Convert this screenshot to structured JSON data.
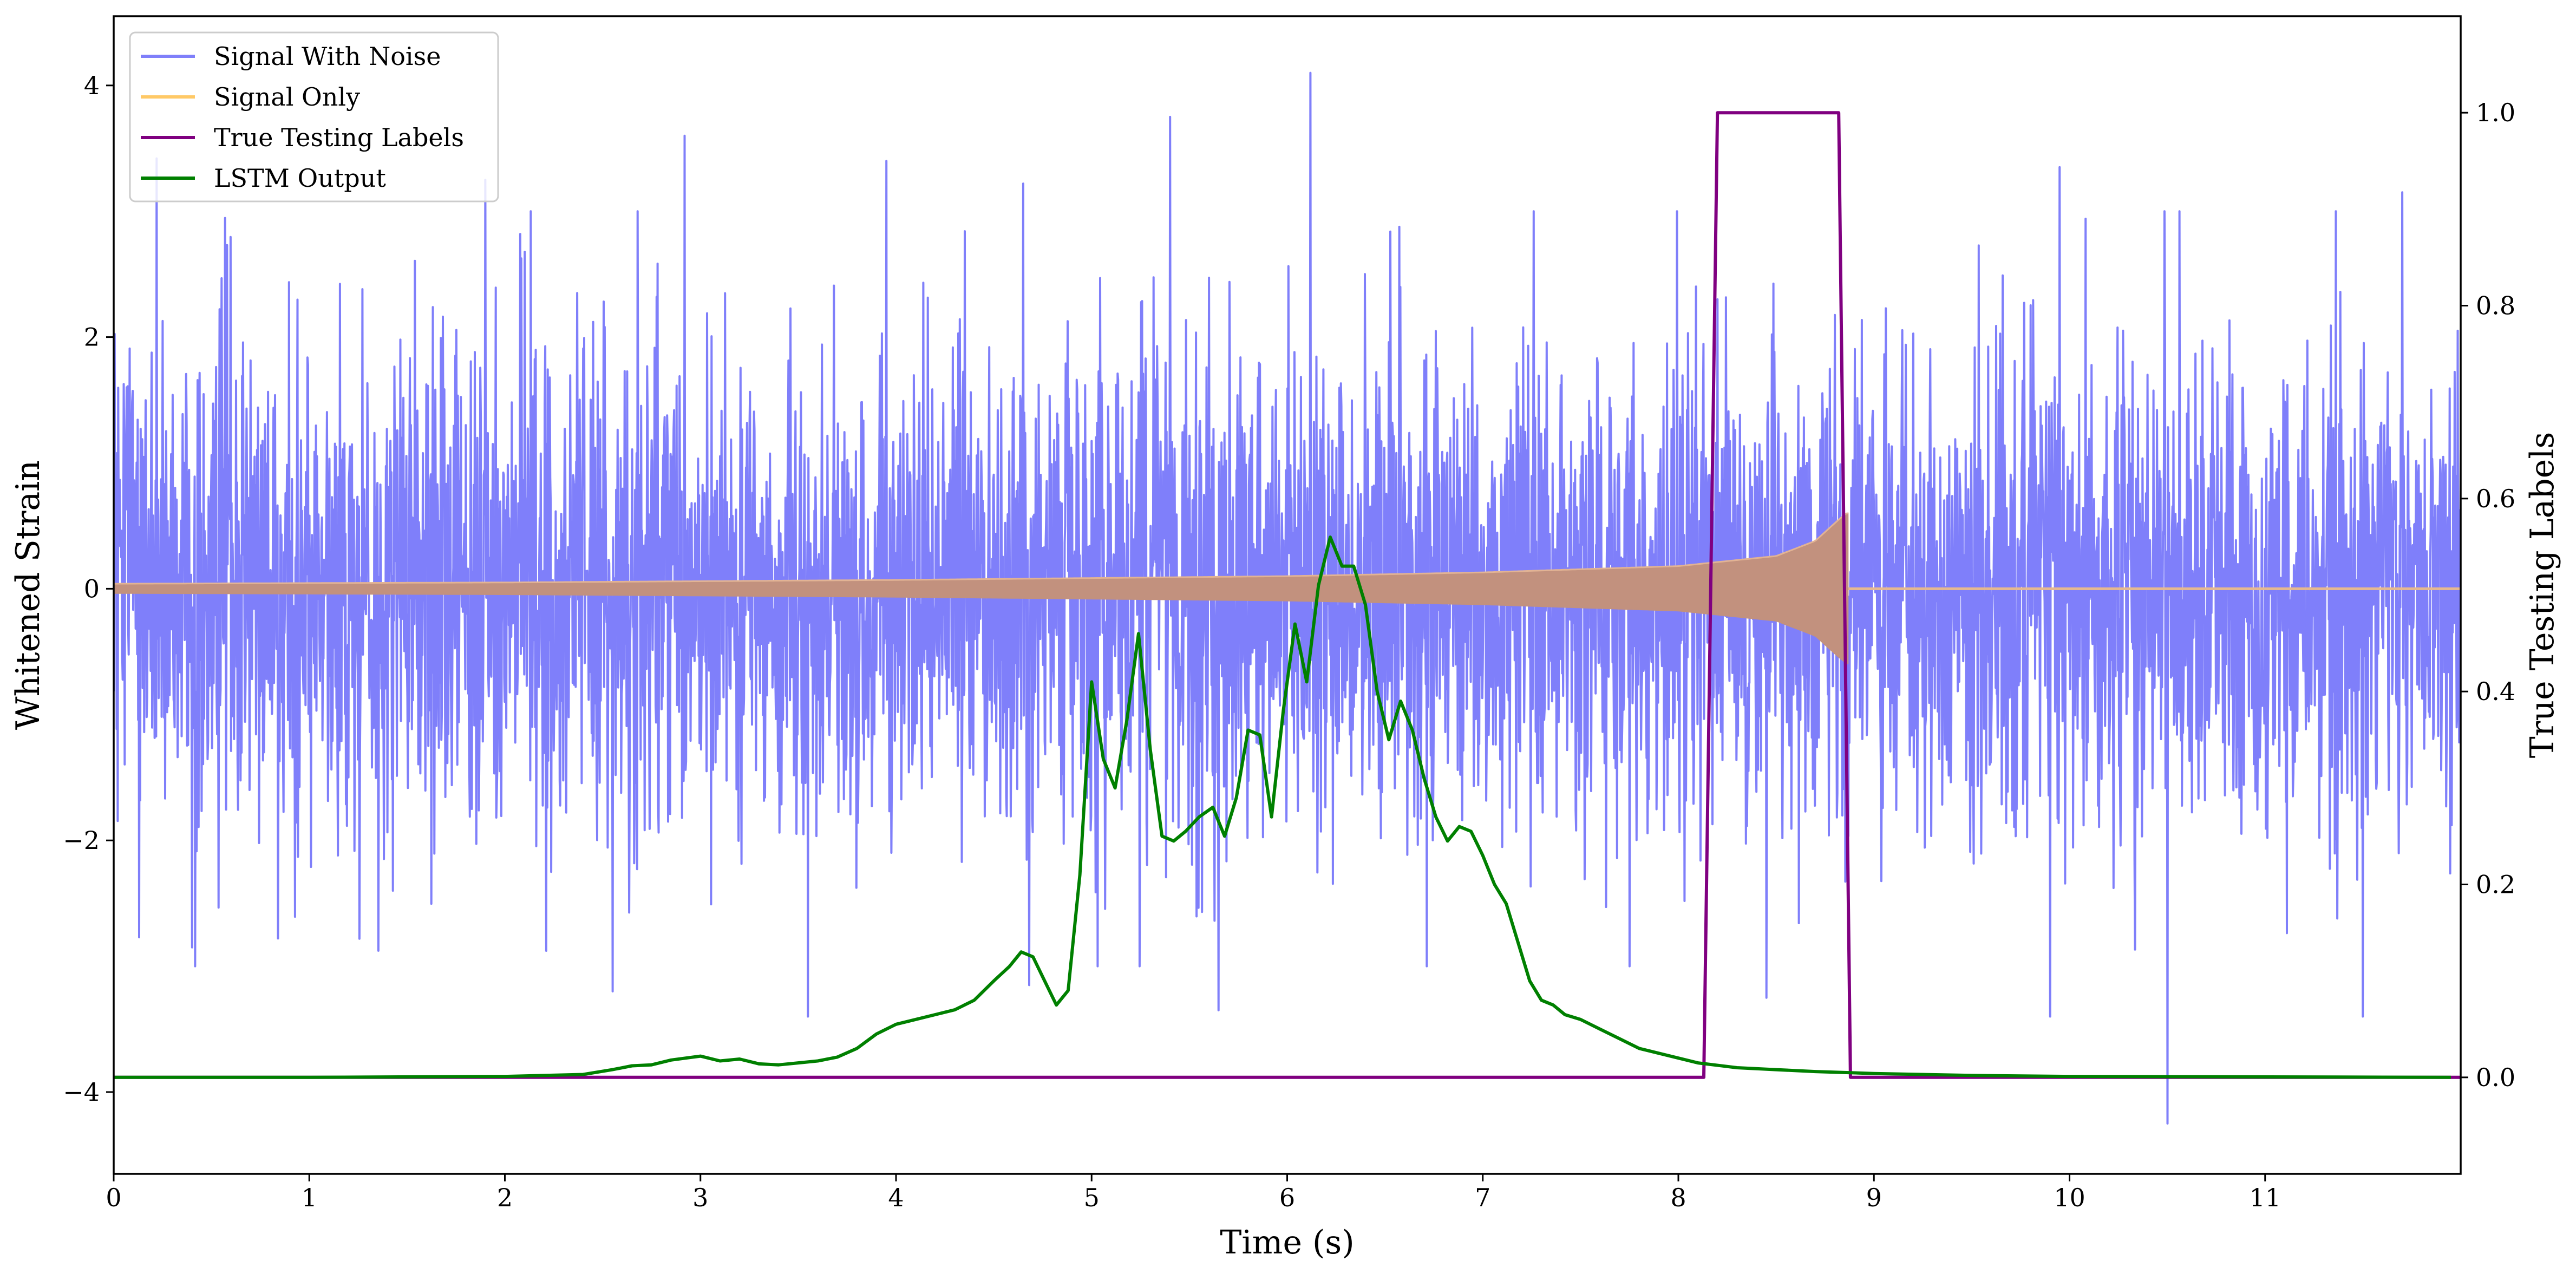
{
  "chart_data": {
    "type": "line",
    "xlabel": "Time (s)",
    "ylabel": "Whitened Strain",
    "y2label": "True Testing Labels",
    "xlim": [
      0,
      12
    ],
    "ylim": [
      -4.65,
      4.55
    ],
    "y2lim": [
      -0.1,
      1.1
    ],
    "x_ticks": [
      0,
      1,
      2,
      3,
      4,
      5,
      6,
      7,
      8,
      9,
      10,
      11
    ],
    "y_ticks": [
      -4,
      -2,
      0,
      2,
      4
    ],
    "y2_ticks": [
      0.0,
      0.2,
      0.4,
      0.6,
      0.8,
      1.0
    ],
    "x_tick_labels": [
      "0",
      "1",
      "2",
      "3",
      "4",
      "5",
      "6",
      "7",
      "8",
      "9",
      "10",
      "11"
    ],
    "y_tick_labels": [
      "−4",
      "−2",
      "0",
      "2",
      "4"
    ],
    "y2_tick_labels": [
      "0.0",
      "0.2",
      "0.4",
      "0.6",
      "0.8",
      "1.0"
    ],
    "grid": false,
    "legend_position": "top-left",
    "series": [
      {
        "name": "Signal With Noise",
        "axis": "left",
        "color": "#7f7ffa",
        "kind": "noise",
        "typical_range": [
          -2.0,
          2.0
        ],
        "peaks": [
          {
            "x": 0.22,
            "y": 3.42
          },
          {
            "x": 1.9,
            "y": 3.25
          },
          {
            "x": 2.92,
            "y": 3.6
          },
          {
            "x": 3.95,
            "y": 3.4
          },
          {
            "x": 4.65,
            "y": 3.22
          },
          {
            "x": 5.4,
            "y": 3.75
          },
          {
            "x": 6.12,
            "y": 4.1
          },
          {
            "x": 8.2,
            "y": 2.3
          },
          {
            "x": 9.95,
            "y": 3.35
          },
          {
            "x": 11.7,
            "y": 3.15
          },
          {
            "x": 0.4,
            "y": -2.85
          },
          {
            "x": 2.55,
            "y": -3.2
          },
          {
            "x": 3.55,
            "y": -3.4
          },
          {
            "x": 4.68,
            "y": -3.15
          },
          {
            "x": 5.65,
            "y": -3.35
          },
          {
            "x": 8.45,
            "y": -3.25
          },
          {
            "x": 9.9,
            "y": -3.4
          },
          {
            "x": 10.5,
            "y": -4.25
          },
          {
            "x": 11.5,
            "y": -3.4
          }
        ]
      },
      {
        "name": "Signal Only",
        "axis": "left",
        "color": "#ffc966",
        "kind": "chirp",
        "envelope": [
          [
            0,
            0.04
          ],
          [
            2,
            0.05
          ],
          [
            4,
            0.07
          ],
          [
            6,
            0.1
          ],
          [
            7,
            0.13
          ],
          [
            8,
            0.18
          ],
          [
            8.5,
            0.26
          ],
          [
            8.7,
            0.38
          ],
          [
            8.82,
            0.55
          ],
          [
            8.86,
            0.6
          ]
        ],
        "end": 8.87
      },
      {
        "name": "True Testing Labels",
        "axis": "right",
        "color": "#800080",
        "x": [
          0,
          8.13,
          8.2,
          8.82,
          8.88,
          12
        ],
        "y": [
          0.0,
          0.0,
          1.0,
          1.0,
          0.0,
          0.0
        ]
      },
      {
        "name": "LSTM Output",
        "axis": "right",
        "color": "#008000",
        "x": [
          0,
          1.0,
          2.0,
          2.4,
          2.55,
          2.65,
          2.75,
          2.85,
          3.0,
          3.1,
          3.2,
          3.3,
          3.4,
          3.5,
          3.6,
          3.7,
          3.8,
          3.9,
          4.0,
          4.1,
          4.2,
          4.3,
          4.4,
          4.5,
          4.58,
          4.64,
          4.7,
          4.76,
          4.82,
          4.88,
          4.94,
          5.0,
          5.06,
          5.12,
          5.18,
          5.24,
          5.3,
          5.36,
          5.42,
          5.48,
          5.55,
          5.62,
          5.68,
          5.74,
          5.8,
          5.86,
          5.92,
          5.98,
          6.04,
          6.1,
          6.16,
          6.22,
          6.28,
          6.34,
          6.4,
          6.46,
          6.52,
          6.58,
          6.64,
          6.7,
          6.76,
          6.82,
          6.88,
          6.94,
          7.0,
          7.06,
          7.12,
          7.18,
          7.24,
          7.3,
          7.36,
          7.42,
          7.5,
          7.6,
          7.7,
          7.8,
          7.9,
          8.0,
          8.1,
          8.3,
          8.5,
          8.7,
          9.0,
          9.5,
          10.0,
          12.0
        ],
        "y": [
          0.0,
          0.0,
          0.001,
          0.003,
          0.008,
          0.012,
          0.013,
          0.018,
          0.022,
          0.017,
          0.019,
          0.014,
          0.013,
          0.015,
          0.017,
          0.021,
          0.03,
          0.045,
          0.055,
          0.06,
          0.065,
          0.07,
          0.08,
          0.1,
          0.115,
          0.13,
          0.125,
          0.1,
          0.075,
          0.09,
          0.21,
          0.41,
          0.33,
          0.3,
          0.37,
          0.46,
          0.34,
          0.25,
          0.245,
          0.255,
          0.27,
          0.28,
          0.25,
          0.29,
          0.36,
          0.355,
          0.27,
          0.38,
          0.47,
          0.41,
          0.51,
          0.56,
          0.53,
          0.53,
          0.49,
          0.4,
          0.35,
          0.39,
          0.36,
          0.31,
          0.27,
          0.245,
          0.26,
          0.255,
          0.23,
          0.2,
          0.18,
          0.14,
          0.1,
          0.08,
          0.075,
          0.065,
          0.06,
          0.05,
          0.04,
          0.03,
          0.025,
          0.02,
          0.015,
          0.01,
          0.008,
          0.006,
          0.004,
          0.002,
          0.001,
          0.0
        ]
      }
    ]
  }
}
